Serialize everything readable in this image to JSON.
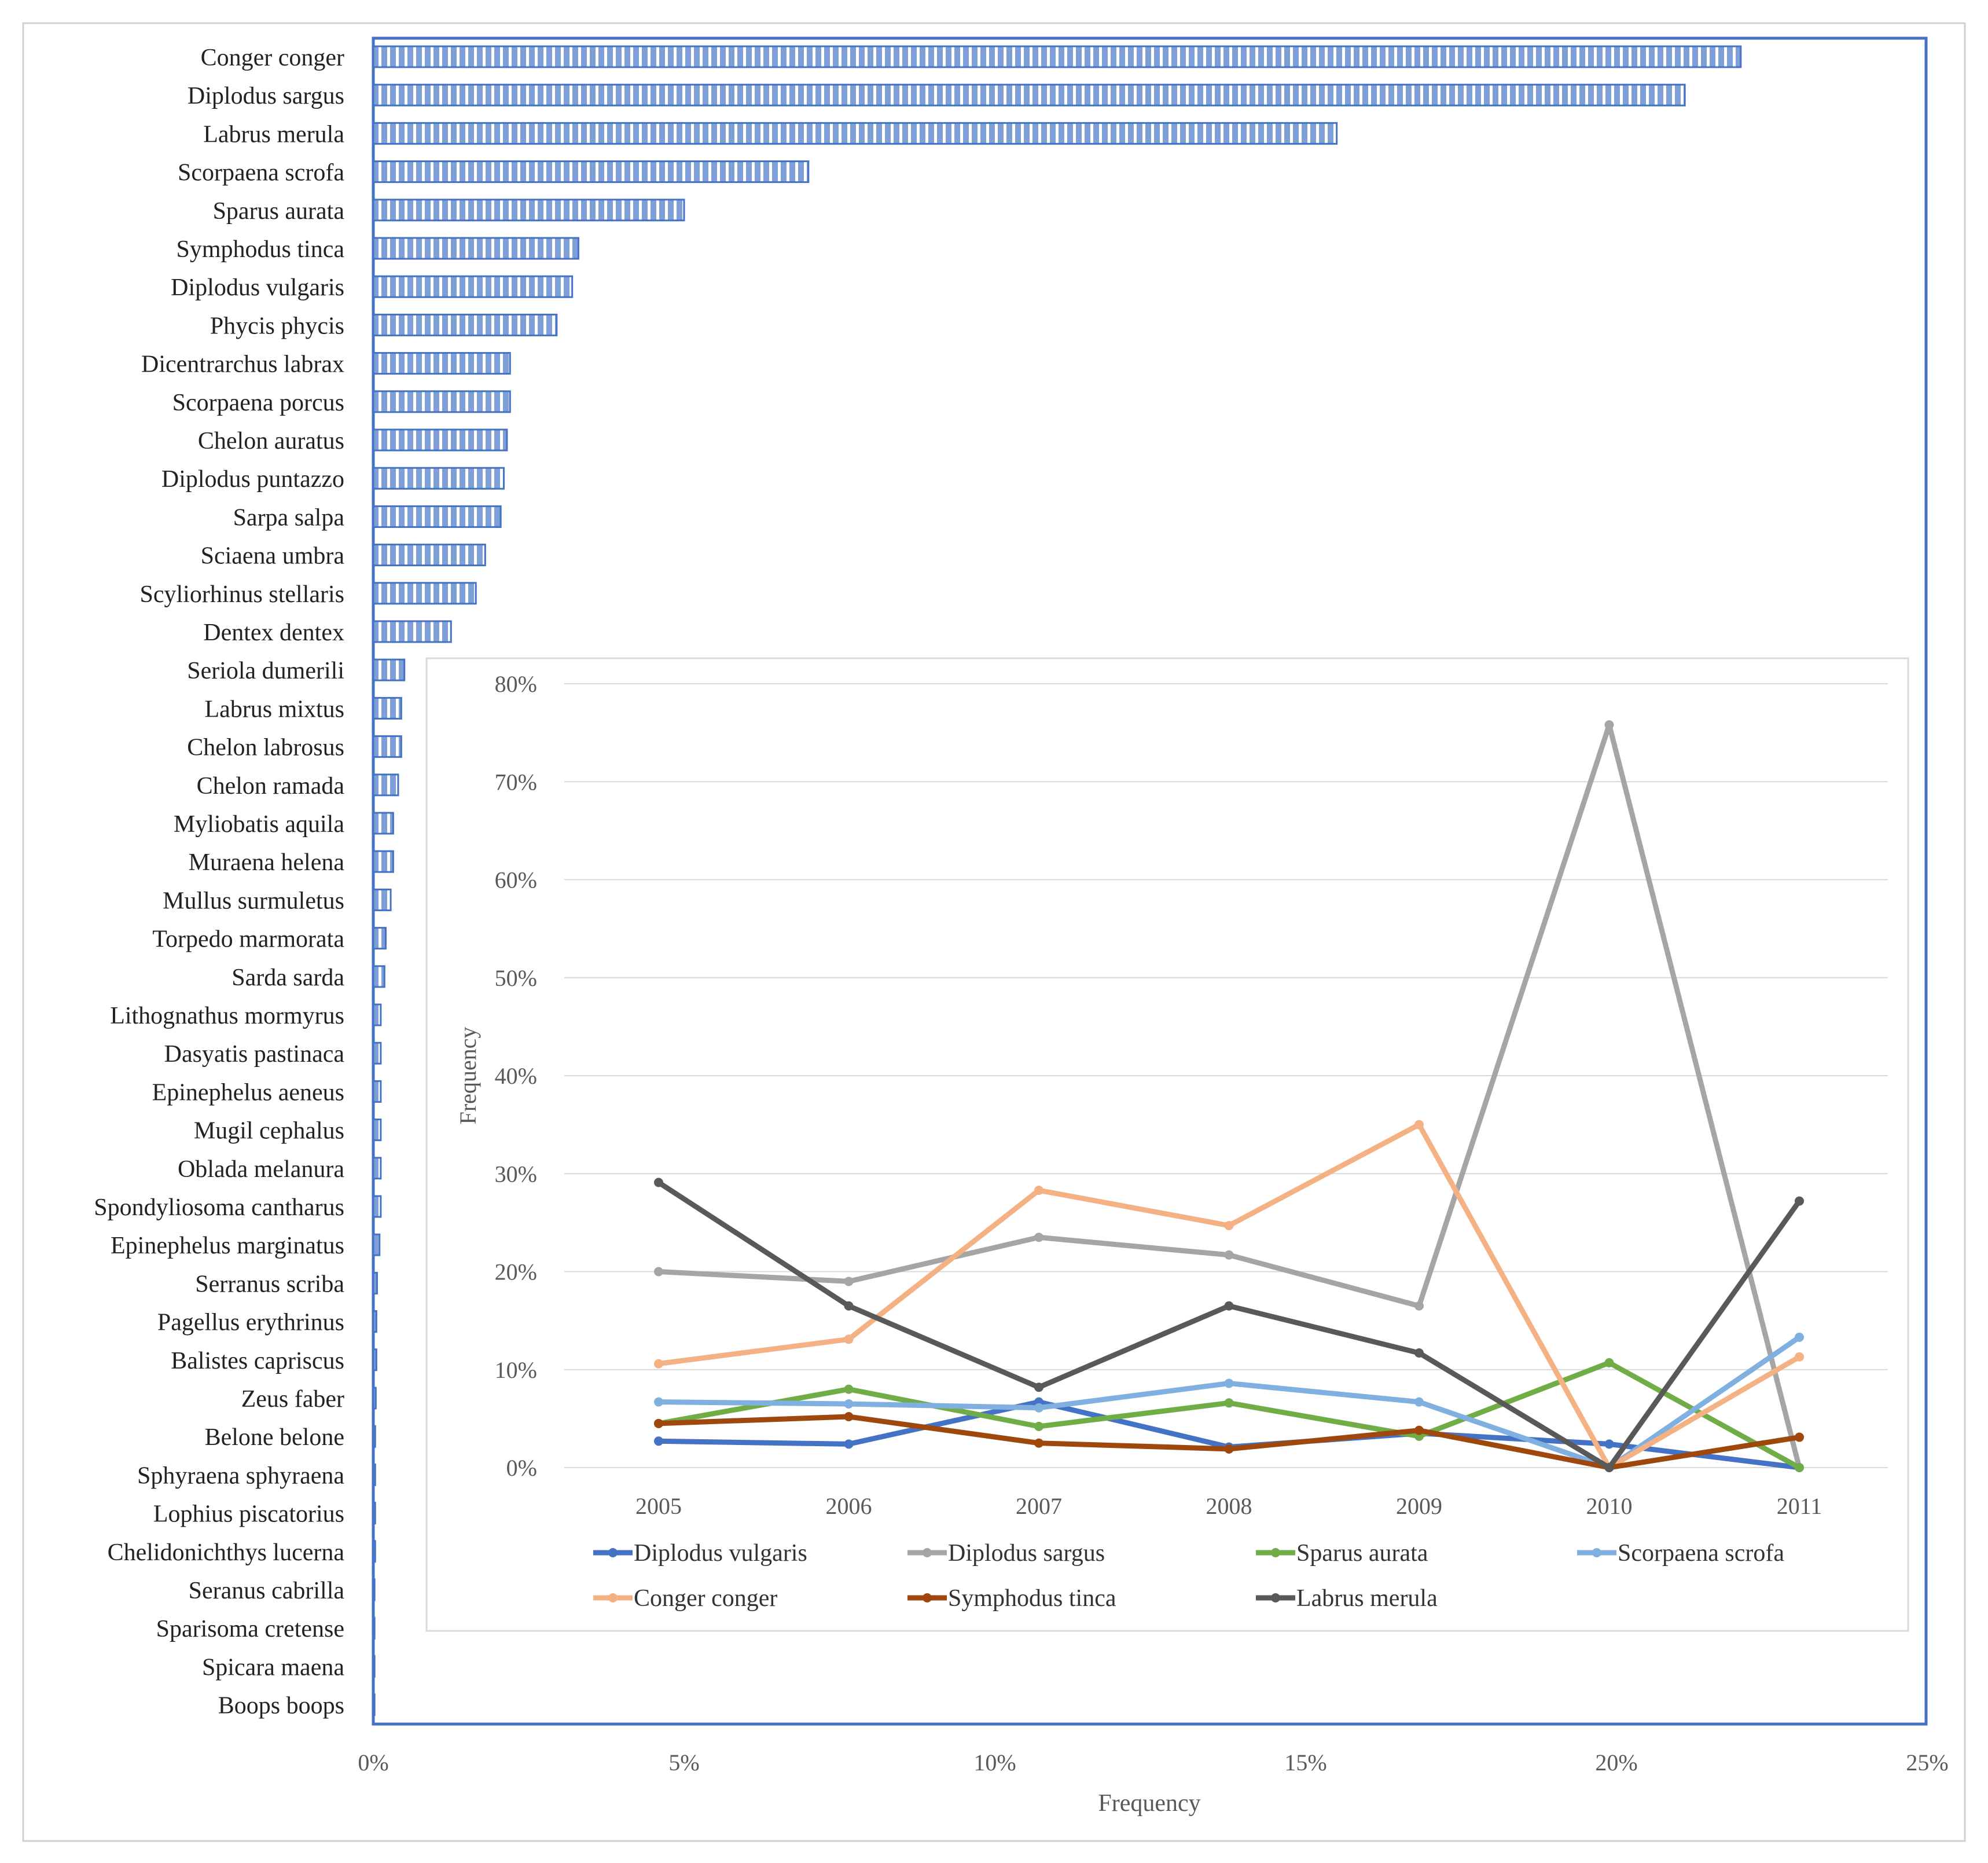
{
  "colors": {
    "frame": "#d0d0d0",
    "bar_border": "#4472c4",
    "bar_fill": "#7f9fd9",
    "bar_stripe": "#ffffff",
    "axis_text": "#595959",
    "grid": "#d9d9d9",
    "main_frame": "#4472c4",
    "inset_border": "#d9d9d9"
  },
  "chart_data": [
    {
      "type": "bar",
      "orientation": "horizontal",
      "xlabel": "Frequency",
      "xlim": [
        0,
        25
      ],
      "xticks": [
        0,
        5,
        10,
        15,
        20,
        25
      ],
      "xtick_labels": [
        "0%",
        "5%",
        "10%",
        "15%",
        "20%",
        "25%"
      ],
      "categories": [
        "Conger conger",
        "Diplodus sargus",
        "Labrus merula",
        "Scorpaena scrofa",
        "Sparus aurata",
        "Symphodus tinca",
        "Diplodus vulgaris",
        "Phycis phycis",
        "Dicentrarchus labrax",
        "Scorpaena porcus",
        "Chelon auratus",
        "Diplodus puntazzo",
        "Sarpa salpa",
        "Sciaena umbra",
        "Scyliorhinus stellaris",
        "Dentex dentex",
        "Seriola dumerili",
        "Labrus mixtus",
        "Chelon labrosus",
        "Chelon ramada",
        "Myliobatis aquila",
        "Muraena helena",
        "Mullus surmuletus",
        "Torpedo marmorata",
        "Sarda sarda",
        "Lithognathus mormyrus",
        "Dasyatis pastinaca",
        "Epinephelus aeneus",
        "Mugil cephalus",
        "Oblada melanura",
        "Spondyliosoma cantharus",
        "Epinephelus marginatus",
        "Serranus scriba",
        "Pagellus erythrinus",
        "Balistes capriscus",
        "Zeus faber",
        "Belone belone",
        "Sphyraena sphyraena",
        "Lophius piscatorius",
        "Chelidonichthys lucerna",
        "Seranus cabrilla",
        "Sparisoma cretense",
        "Spicara maena",
        "Boops boops"
      ],
      "values": [
        22.0,
        21.1,
        15.5,
        7.0,
        5.0,
        3.3,
        3.2,
        2.95,
        2.2,
        2.2,
        2.15,
        2.1,
        2.05,
        1.8,
        1.65,
        1.25,
        0.5,
        0.45,
        0.45,
        0.4,
        0.32,
        0.32,
        0.28,
        0.2,
        0.18,
        0.12,
        0.12,
        0.12,
        0.12,
        0.12,
        0.12,
        0.1,
        0.06,
        0.05,
        0.05,
        0.04,
        0.03,
        0.03,
        0.03,
        0.03,
        0.02,
        0.02,
        0.02,
        0.02
      ]
    },
    {
      "type": "line",
      "ylabel": "Frequency",
      "x": [
        "2005",
        "2006",
        "2007",
        "2008",
        "2009",
        "2010",
        "2011"
      ],
      "ylim": [
        0,
        80
      ],
      "yticks": [
        0,
        10,
        20,
        30,
        40,
        50,
        60,
        70,
        80
      ],
      "ytick_labels": [
        "0%",
        "10%",
        "20%",
        "30%",
        "40%",
        "50%",
        "60%",
        "70%",
        "80%"
      ],
      "series": [
        {
          "name": "Diplodus vulgaris",
          "color": "#4472c4",
          "values": [
            2.7,
            2.4,
            6.7,
            2.1,
            3.5,
            2.4,
            0.0
          ]
        },
        {
          "name": "Diplodus sargus",
          "color": "#a5a5a5",
          "values": [
            20.0,
            19.0,
            23.5,
            21.7,
            16.5,
            75.8,
            0.0
          ]
        },
        {
          "name": "Sparus aurata",
          "color": "#70ad47",
          "values": [
            4.5,
            8.0,
            4.2,
            6.6,
            3.2,
            10.7,
            0.0
          ]
        },
        {
          "name": "Scorpaena scrofa",
          "color": "#7fb0e0",
          "values": [
            6.7,
            6.5,
            6.1,
            8.6,
            6.7,
            0.0,
            13.3
          ]
        },
        {
          "name": "Conger conger",
          "color": "#f4b183",
          "values": [
            10.6,
            13.1,
            28.3,
            24.7,
            35.0,
            0.0,
            11.3
          ]
        },
        {
          "name": "Symphodus tinca",
          "color": "#9e480e",
          "values": [
            4.5,
            5.2,
            2.5,
            1.9,
            3.8,
            0.0,
            3.1
          ]
        },
        {
          "name": "Labrus merula",
          "color": "#595959",
          "values": [
            29.1,
            16.5,
            8.2,
            16.5,
            11.7,
            0.0,
            27.2
          ]
        }
      ]
    }
  ]
}
